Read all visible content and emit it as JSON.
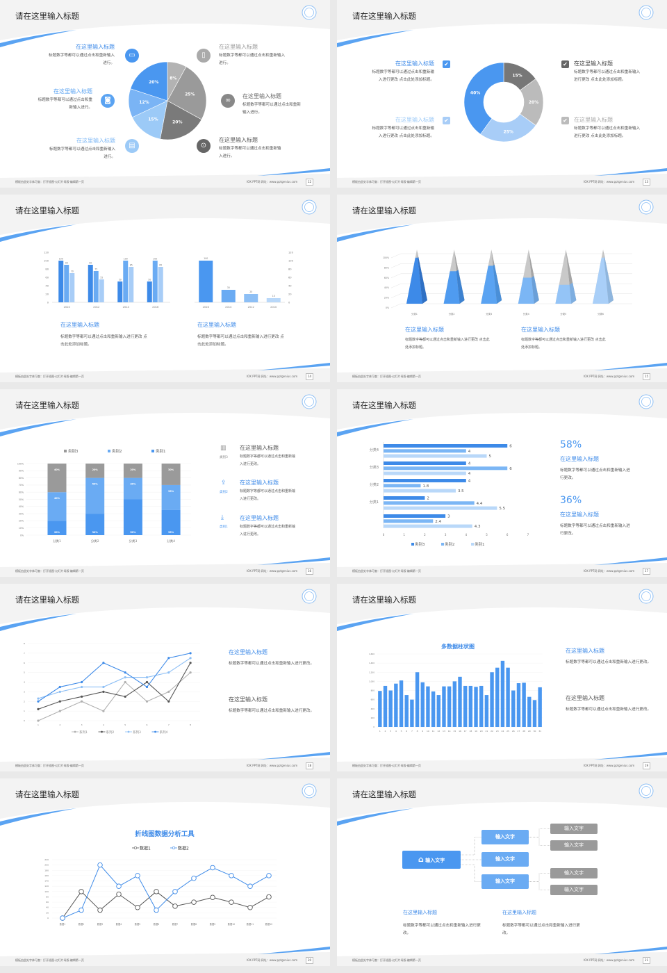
{
  "common": {
    "footer_left": "模板由此处字体可查：打开插图-幻灯片母版-编辑第一页",
    "footer_right": "IOK PPT网  网址：www.pptgenius.com"
  },
  "colors": {
    "accent": "#4a97f0",
    "accent_light": "#a8cdf7",
    "gray": "#9a9a9a",
    "dark_gray": "#555555"
  },
  "slides": [
    {
      "title": "请在这里输入标题",
      "page": "12",
      "left": [
        {
          "title": "在这里输入标题",
          "body": "标题数字等都可以通过点击和重新输入进行。",
          "icon": "monitor-icon"
        },
        {
          "title": "在这里输入标题",
          "body": "标题数字等都可以通过点击和重新输入进行。",
          "icon": "car-icon"
        },
        {
          "title": "在这里输入标题",
          "body": "标题数字等都可以通过点击和重新输入进行。",
          "icon": "book-icon"
        }
      ],
      "right": [
        {
          "title": "在这里输入标题",
          "body": "标题数字等都可以通过点击和重新输入进行。",
          "icon": "phone-icon"
        },
        {
          "title": "在这里输入标题",
          "body": "标题数字等都可以通过点击和重新输入进行。",
          "icon": "binoculars-icon"
        },
        {
          "title": "在这里输入标题",
          "body": "标题数字等都可以通过点击和重新输入进行。",
          "icon": "bicycle-icon"
        }
      ]
    },
    {
      "title": "请在这里输入标题",
      "page": "13",
      "items": [
        {
          "title": "在这里输入标题",
          "body": "标题数字等都可以通过点击和重新输入进行更改 点击此处添加标题。"
        },
        {
          "title": "在这里输入标题",
          "body": "标题数字等都可以通过点击和重新输入进行更改 点击此处添加标题。"
        },
        {
          "title": "在这里输入标题",
          "body": "标题数字等都可以通过点击和重新输入进行更改 点击此处添加标题。"
        },
        {
          "title": "在这里输入标题",
          "body": "标题数字等都可以通过点击和重新输入进行更改 点击此处添加标题。"
        }
      ]
    },
    {
      "title": "请在这里输入标题",
      "page": "14",
      "items": [
        {
          "title": "在这里输入标题",
          "body": "标题数字等都可以通过点击和重新输入进行更改 点击此处添加标题。"
        },
        {
          "title": "在这里输入标题",
          "body": "标题数字等都可以通过点击和重新输入进行更改 点击此处添加标题。"
        }
      ]
    },
    {
      "title": "请在这里输入标题",
      "page": "15",
      "items": [
        {
          "title": "在这里输入标题",
          "body": "标题数字等都可以通过点击和重新输入进行更改 点击此处添加标题。"
        },
        {
          "title": "在这里输入标题",
          "body": "标题数字等都可以通过点击和重新输入进行更改 点击此处添加标题。"
        }
      ]
    },
    {
      "title": "请在这里输入标题",
      "page": "16",
      "items": [
        {
          "label": "类别3",
          "title": "在这里输入标题",
          "body": "标题数字等都可以通过点击和重新输入进行更改。",
          "icon": "bar-chart-icon"
        },
        {
          "label": "类别2",
          "title": "在这里输入标题",
          "body": "标题数字等都可以通过点击和重新输入进行更改。",
          "icon": "upload-icon"
        },
        {
          "label": "类别1",
          "title": "在这里输入标题",
          "body": "标题数字等都可以通过点击和重新输入进行更改。",
          "icon": "download-icon"
        }
      ]
    },
    {
      "title": "请在这里输入标题",
      "page": "17",
      "items": [
        {
          "value": "58%",
          "title": "在这里输入标题",
          "body": "标题数字等都可以通过点击和重新输入进行更改。"
        },
        {
          "value": "36%",
          "title": "在这里输入标题",
          "body": "标题数字等都可以通过点击和重新输入进行更改。"
        }
      ]
    },
    {
      "title": "请在这里输入标题",
      "page": "18",
      "items": [
        {
          "title": "在这里输入标题",
          "body": "标题数字等都可以通过点击和重新输入进行更改。"
        },
        {
          "title": "在这里输入标题",
          "body": "标题数字等都可以通过点击和重新输入进行更改。"
        }
      ]
    },
    {
      "title": "请在这里输入标题",
      "page": "19",
      "items": [
        {
          "title": "在这里输入标题",
          "body": "标题数字等都可以通过点击和重新输入进行更改。"
        },
        {
          "title": "在这里输入标题",
          "body": "标题数字等都可以通过点击和重新输入进行更改。"
        }
      ]
    },
    {
      "title": "请在这里输入标题",
      "page": "20"
    },
    {
      "title": "请在这里输入标题",
      "page": "21",
      "tree": {
        "root": "输入文字",
        "mid": [
          "输入文字",
          "输入文字",
          "输入文字"
        ],
        "leaves": [
          "输入文字",
          "输入文字",
          "输入文字",
          "输入文字"
        ]
      },
      "items": [
        {
          "title": "在这里输入标题",
          "body": "标题数字等都可以通过点击和重新输入进行更改。"
        },
        {
          "title": "在这里输入标题",
          "body": "标题数字等都可以通过点击和重新输入进行更改。"
        }
      ]
    }
  ],
  "chart_data": [
    {
      "type": "pie",
      "values": [
        8,
        25,
        20,
        15,
        12,
        20
      ],
      "labels": [
        "8%",
        "25%",
        "20%",
        "15%",
        "12%",
        "20%"
      ],
      "colors": [
        "#b3b3b3",
        "#9a9a9a",
        "#7a7a7a",
        "#9ccaf7",
        "#7ab4f5",
        "#4a97f0"
      ]
    },
    {
      "type": "pie",
      "donut": true,
      "values": [
        15,
        20,
        25,
        40
      ],
      "labels": [
        "15%",
        "20%",
        "25%",
        "40%"
      ],
      "colors": [
        "#777777",
        "#bbbbbb",
        "#a8cdf7",
        "#4a97f0"
      ]
    },
    {
      "type": "bar",
      "categories": [
        "2010",
        "2012",
        "2014",
        "2016"
      ],
      "series": [
        {
          "values": [
            100,
            90,
            50,
            50
          ]
        },
        {
          "values": [
            90,
            75,
            100,
            100
          ]
        },
        {
          "values": [
            70,
            55,
            85,
            85
          ]
        }
      ],
      "ylim": [
        0,
        120
      ],
      "yticks": [
        0,
        20,
        40,
        60,
        80,
        100,
        120
      ]
    },
    {
      "type": "bar",
      "categories": [
        "2016",
        "2014",
        "2012",
        "2010"
      ],
      "values": [
        100,
        30,
        20,
        10
      ],
      "ylim": [
        0,
        120
      ],
      "yticks": [
        0,
        20,
        40,
        60,
        80,
        100,
        120
      ],
      "axis": "right"
    },
    {
      "type": "bar",
      "style": "3d-pyramid",
      "categories": [
        "分类1",
        "分类2",
        "分类3",
        "分类4",
        "分类5",
        "分类6"
      ],
      "values": [
        85,
        60,
        70,
        48,
        35,
        85
      ],
      "ylim": [
        0,
        100
      ],
      "yticks": [
        "0%",
        "20%",
        "40%",
        "60%",
        "80%",
        "100%"
      ]
    },
    {
      "type": "bar",
      "stacked": true,
      "categories": [
        "分类1",
        "分类2",
        "分类3",
        "分类4"
      ],
      "series": [
        {
          "name": "类别1",
          "values": [
            20,
            30,
            50,
            35
          ]
        },
        {
          "name": "类别2",
          "values": [
            40,
            50,
            30,
            35
          ]
        },
        {
          "name": "类别3",
          "values": [
            40,
            20,
            20,
            30
          ]
        }
      ],
      "ylim": [
        0,
        100
      ],
      "yticks": [
        "0%",
        "10%",
        "20%",
        "30%",
        "40%",
        "50%",
        "60%",
        "70%",
        "80%",
        "90%",
        "100%"
      ],
      "legend": "top"
    },
    {
      "type": "bar",
      "orientation": "horizontal",
      "categories": [
        "分类4",
        "分类3",
        "分类2",
        "分类1",
        ""
      ],
      "series": [
        {
          "name": "类别3",
          "values": [
            6,
            4,
            4,
            2,
            3
          ]
        },
        {
          "name": "类别2",
          "values": [
            4,
            6,
            1.8,
            4.4,
            2.4
          ]
        },
        {
          "name": "类别1",
          "values": [
            5,
            4,
            3.5,
            5.5,
            4.3
          ]
        }
      ],
      "xlim": [
        0,
        7
      ],
      "legend": "bottom"
    },
    {
      "type": "line",
      "x": [
        1,
        2,
        3,
        4,
        5,
        6,
        7,
        8
      ],
      "series": [
        {
          "name": "系列1",
          "values": [
            0,
            1,
            2,
            1,
            4,
            2,
            3,
            5
          ]
        },
        {
          "name": "系列2",
          "values": [
            1.2,
            2,
            2.5,
            3,
            2.5,
            4,
            2,
            6
          ]
        },
        {
          "name": "系列3",
          "values": [
            2.3,
            3,
            3.5,
            3.5,
            4.5,
            4.5,
            5,
            6.5
          ]
        },
        {
          "name": "系列4",
          "values": [
            2,
            3.5,
            4,
            6,
            5,
            3.5,
            6.5,
            7
          ]
        }
      ],
      "ylim": [
        0,
        8
      ],
      "legend": "bottom"
    },
    {
      "type": "bar",
      "title": "多数据柱状图",
      "categories": [
        "1",
        "2",
        "3",
        "4",
        "5",
        "6",
        "7",
        "8",
        "9",
        "10",
        "11",
        "12",
        "13",
        "14",
        "15",
        "16",
        "17",
        "18",
        "19",
        "20",
        "21",
        "22",
        "23",
        "24",
        "25",
        "26",
        "27",
        "28",
        "29",
        "30",
        "31"
      ],
      "values": [
        790,
        900,
        800,
        950,
        1020,
        700,
        600,
        1200,
        980,
        890,
        780,
        700,
        890,
        890,
        1000,
        1100,
        900,
        900,
        880,
        900,
        700,
        1200,
        1300,
        1450,
        1300,
        800,
        960,
        970,
        660,
        590,
        870
      ],
      "ylim": [
        0,
        1600
      ],
      "yticks": [
        "0",
        "200",
        "400",
        "600",
        "800",
        "1,000",
        "1,200",
        "1,400",
        "1,600"
      ]
    },
    {
      "type": "line",
      "title": "折线图数据分析工具",
      "categories": [
        "数据1",
        "数据2",
        "数据3",
        "数据4",
        "数据5",
        "数据6",
        "数据7",
        "数据8",
        "数据9",
        "数据10",
        "数据11",
        "数据12"
      ],
      "series": [
        {
          "name": "数据1",
          "values": [
            0,
            100,
            30,
            90,
            40,
            100,
            45,
            60,
            78,
            60,
            40,
            80
          ]
        },
        {
          "name": "数据2",
          "values": [
            0,
            30,
            200,
            120,
            160,
            30,
            100,
            150,
            190,
            160,
            120,
            160
          ]
        }
      ],
      "ylim": [
        0,
        220
      ],
      "legend": "top"
    }
  ]
}
